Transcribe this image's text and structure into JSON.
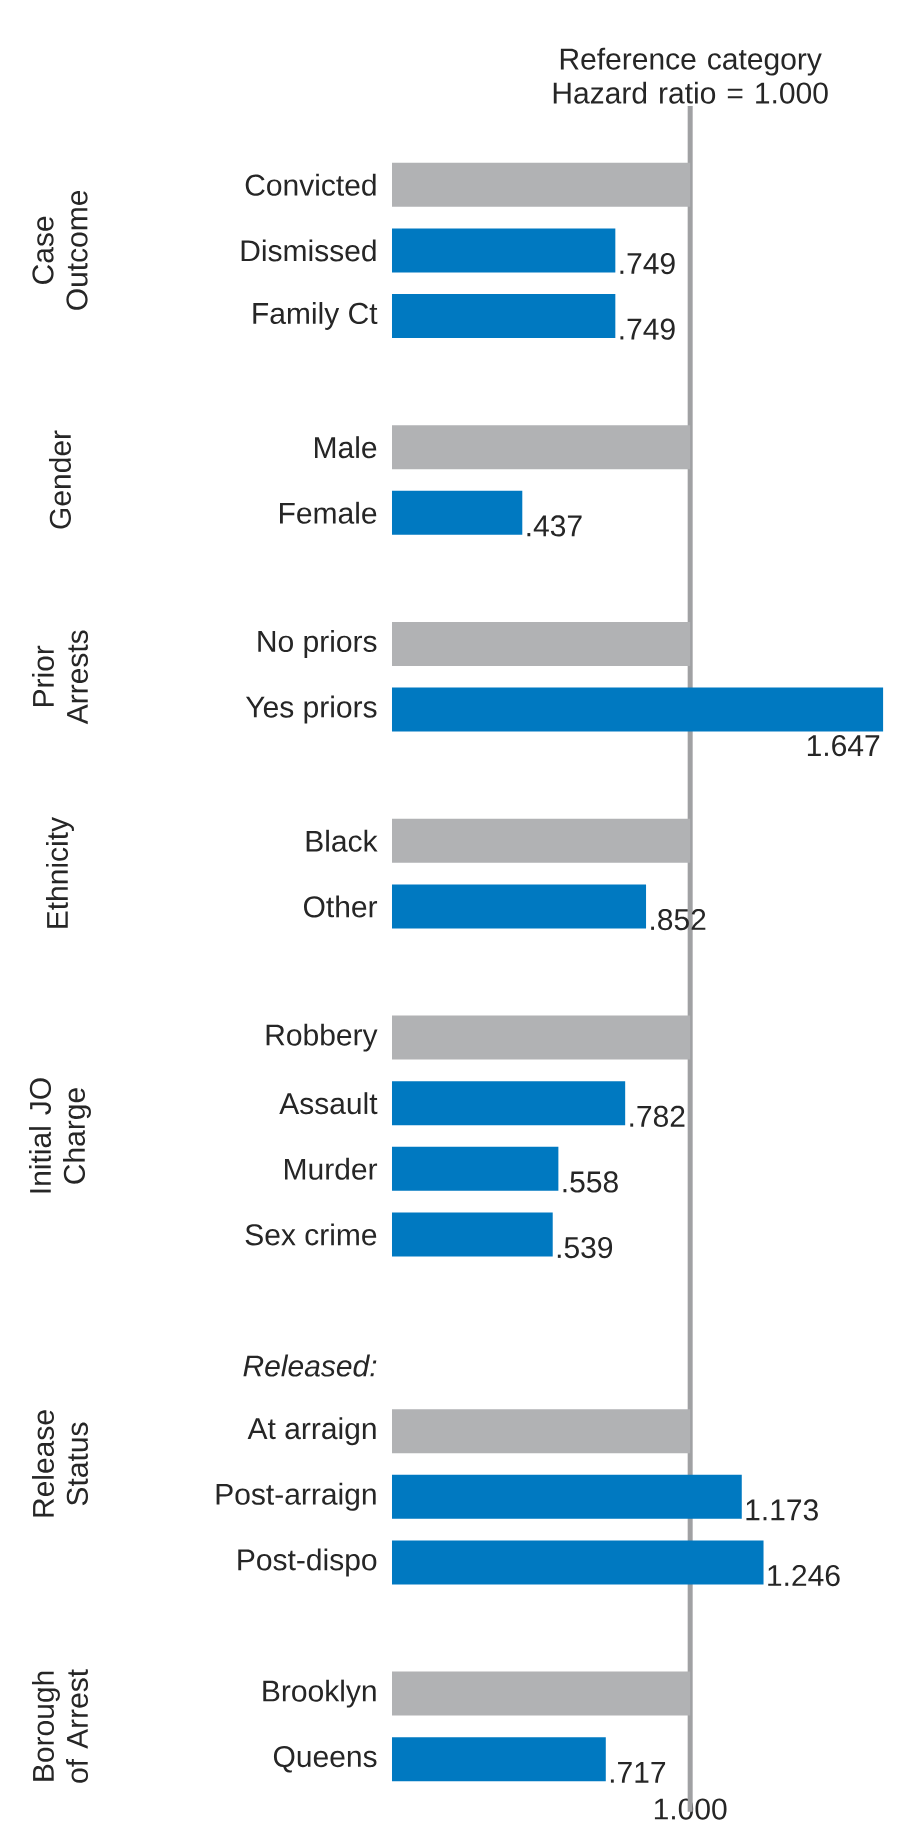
{
  "chart_data": {
    "type": "bar",
    "orientation": "horizontal",
    "categories": [
      "Convicted",
      "Dismissed",
      "Family Ct",
      null,
      "Male",
      "Female",
      null,
      "No priors",
      "Yes priors",
      null,
      "Black",
      "Other",
      null,
      "Robbery",
      "Assault",
      "Murder",
      "Sex crime",
      null,
      "*Released:*",
      "At arraign",
      "Post-arraign",
      "Post-dispo",
      null,
      "Brooklyn",
      "Queens"
    ],
    "values": [
      1,
      0.749,
      0.749,
      null,
      1,
      0.437,
      null,
      1,
      1.647,
      null,
      1,
      0.852,
      null,
      1,
      0.782,
      0.558,
      0.539,
      null,
      null,
      1,
      1.173,
      1.246,
      null,
      1,
      0.717
    ],
    "colors": [
      "#b1b2b4",
      "#0079c1",
      "#0079c1",
      null,
      "#b1b2b4",
      "#0079c1",
      null,
      "#b1b2b4",
      "#0079c1",
      null,
      "#b1b2b4",
      "#0079c1",
      null,
      "#b1b2b4",
      "#0079c1",
      "#0079c1",
      "#0079c1",
      null,
      null,
      "#b1b2b4",
      "#0079c1",
      "#0079c1",
      null,
      "#b1b2b4",
      "#0079c1"
    ],
    "value_labels": [
      null,
      ".749",
      ".749",
      null,
      null,
      ".437",
      null,
      null,
      "1.647",
      null,
      null,
      ".852",
      null,
      null,
      ".782",
      ".558",
      ".539",
      null,
      null,
      null,
      "1.173",
      "1.246",
      null,
      null,
      ".717"
    ],
    "xlim": [
      0,
      1.65
    ],
    "xticks": [
      {
        "value": 1,
        "label": "1.000"
      }
    ],
    "ref_lines": [
      {
        "axis": "x",
        "value": 1,
        "label": "Reference category Hazard ratio = 1.000",
        "color": "#a0a1a3"
      }
    ],
    "annotations": [
      "Case Outcome",
      "Gender",
      "Prior Arrests",
      "Ethnicity",
      "Initial JO Charge",
      "Release Status",
      "Borough of Arrest"
    ]
  }
}
